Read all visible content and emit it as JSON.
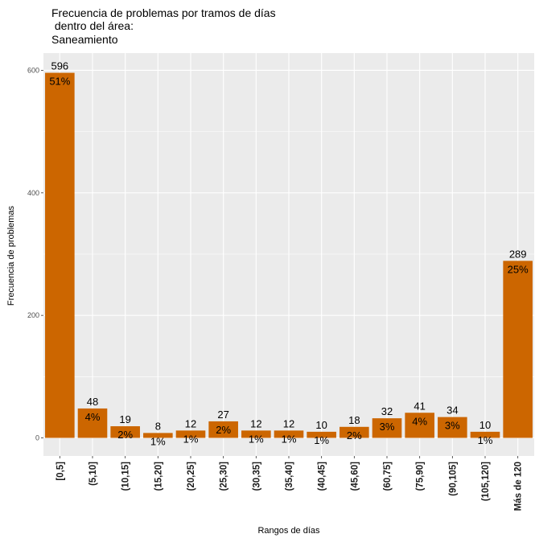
{
  "chart_data": {
    "type": "bar",
    "title": [
      "Frecuencia de problemas por tramos de días",
      " dentro del área:",
      "Saneamiento"
    ],
    "xlabel": "Rangos de días",
    "ylabel": "Frecuencia de problemas",
    "ylim": [
      0,
      620
    ],
    "yticks": [
      0,
      200,
      400,
      600
    ],
    "grid": true,
    "bar_color": "#CC6600",
    "panel_color": "#EBEBEB",
    "grid_color": "#FFFFFF",
    "categories": [
      "[0,5]",
      "(5,10]",
      "(10,15]",
      "(15,20]",
      "(20,25]",
      "(25,30]",
      "(30,35]",
      "(35,40]",
      "(40,45]",
      "(45,60]",
      "(60,75]",
      "(75,90]",
      "(90,105]",
      "(105,120]",
      "Más de 120"
    ],
    "values": [
      596,
      48,
      19,
      8,
      12,
      27,
      12,
      12,
      10,
      18,
      32,
      41,
      34,
      10,
      289
    ],
    "value_labels": [
      "596",
      "48",
      "19",
      "8",
      "12",
      "27",
      "12",
      "12",
      "10",
      "18",
      "32",
      "41",
      "34",
      "10",
      "289"
    ],
    "percent_labels": [
      "51%",
      "4%",
      "2%",
      "1%",
      "1%",
      "2%",
      "1%",
      "1%",
      "1%",
      "2%",
      "3%",
      "4%",
      "3%",
      "1%",
      "25%"
    ]
  }
}
